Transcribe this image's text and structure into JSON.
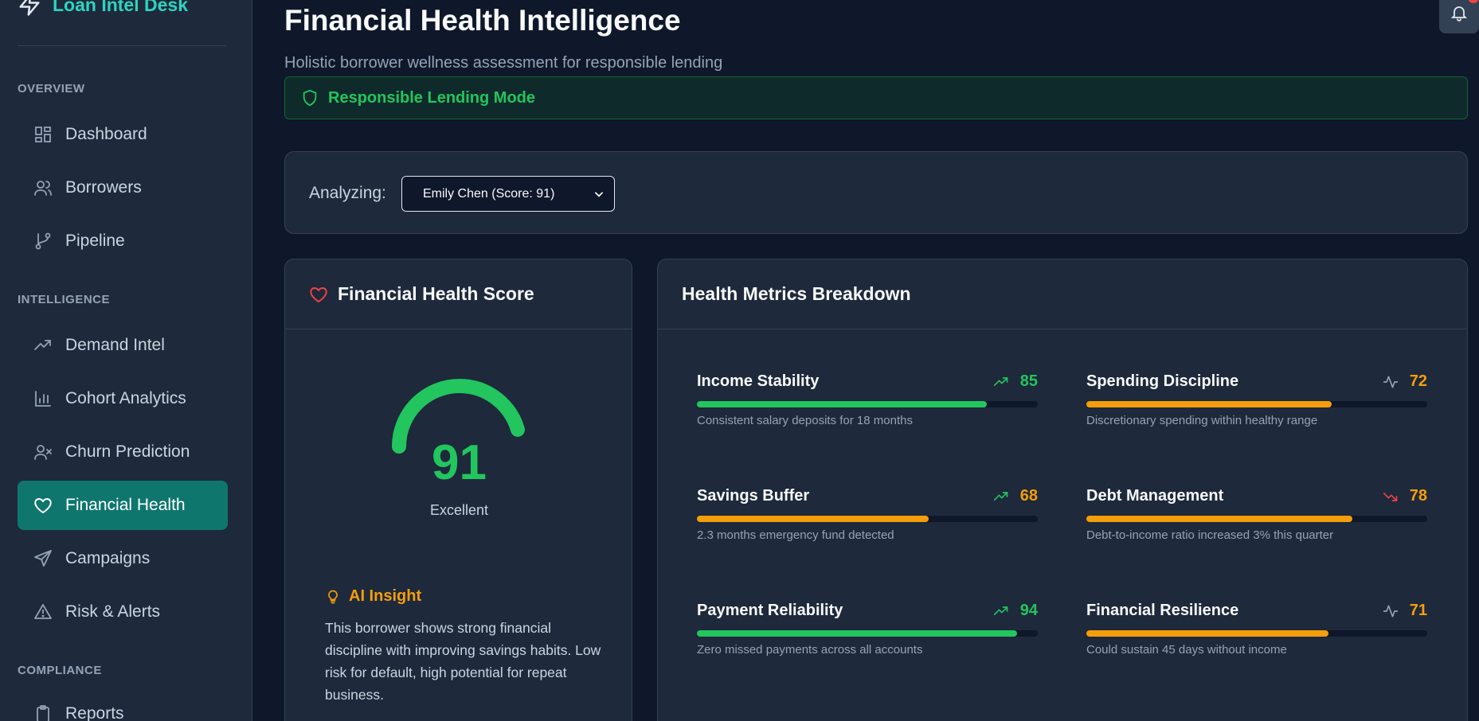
{
  "brand": {
    "name": "Loan Intel Desk",
    "icon": "lightning-icon"
  },
  "sidebar": {
    "sections": [
      {
        "label": "OVERVIEW",
        "items": [
          {
            "label": "Dashboard",
            "icon": "grid-icon"
          },
          {
            "label": "Borrowers",
            "icon": "users-icon"
          },
          {
            "label": "Pipeline",
            "icon": "git-branch-icon"
          }
        ]
      },
      {
        "label": "INTELLIGENCE",
        "items": [
          {
            "label": "Demand Intel",
            "icon": "trending-up-icon"
          },
          {
            "label": "Cohort Analytics",
            "icon": "bar-chart-icon"
          },
          {
            "label": "Churn Prediction",
            "icon": "user-x-icon"
          },
          {
            "label": "Financial Health",
            "icon": "heart-icon",
            "active": true
          },
          {
            "label": "Campaigns",
            "icon": "send-icon"
          },
          {
            "label": "Risk & Alerts",
            "icon": "alert-triangle-icon"
          }
        ]
      },
      {
        "label": "COMPLIANCE",
        "items": [
          {
            "label": "Reports",
            "icon": "clipboard-icon"
          }
        ]
      }
    ]
  },
  "header": {
    "title": "Financial Health Intelligence",
    "subtitle": "Holistic borrower wellness assessment for responsible lending",
    "mode_label": "Responsible Lending Mode"
  },
  "analyzer": {
    "label": "Analyzing:",
    "selected": "Emily Chen (Score: 91)"
  },
  "score_card": {
    "title": "Financial Health Score",
    "score": "91",
    "score_fraction": 0.91,
    "rating": "Excellent",
    "insight_title": "AI Insight",
    "insight_text": "This borrower shows strong financial discipline with improving savings habits. Low risk for default, high potential for repeat business."
  },
  "metrics_card": {
    "title": "Health Metrics Breakdown",
    "metrics": [
      {
        "name": "Income Stability",
        "value": "85",
        "percent": 85,
        "color": "#22c55e",
        "trend": "trending-up-icon",
        "trend_color": "#22c55e",
        "description": "Consistent salary deposits for 18 months"
      },
      {
        "name": "Spending Discipline",
        "value": "72",
        "percent": 72,
        "color": "#f59e0b",
        "trend": "activity-icon",
        "trend_color": "#94a3b8",
        "description": "Discretionary spending within healthy range"
      },
      {
        "name": "Savings Buffer",
        "value": "68",
        "percent": 68,
        "color": "#f59e0b",
        "trend": "trending-up-icon",
        "trend_color": "#22c55e",
        "description": "2.3 months emergency fund detected"
      },
      {
        "name": "Debt Management",
        "value": "78",
        "percent": 78,
        "color": "#f59e0b",
        "trend": "trending-down-icon",
        "trend_color": "#ef4444",
        "description": "Debt-to-income ratio increased 3% this quarter"
      },
      {
        "name": "Payment Reliability",
        "value": "94",
        "percent": 94,
        "color": "#22c55e",
        "trend": "trending-up-icon",
        "trend_color": "#22c55e",
        "description": "Zero missed payments across all accounts"
      },
      {
        "name": "Financial Resilience",
        "value": "71",
        "percent": 71,
        "color": "#f59e0b",
        "trend": "activity-icon",
        "trend_color": "#94a3b8",
        "description": "Could sustain 45 days without income"
      }
    ]
  },
  "colors": {
    "accent": "#0f766e",
    "brand": "#2dd4bf",
    "good": "#22c55e",
    "warn": "#f59e0b",
    "bad": "#ef4444"
  }
}
